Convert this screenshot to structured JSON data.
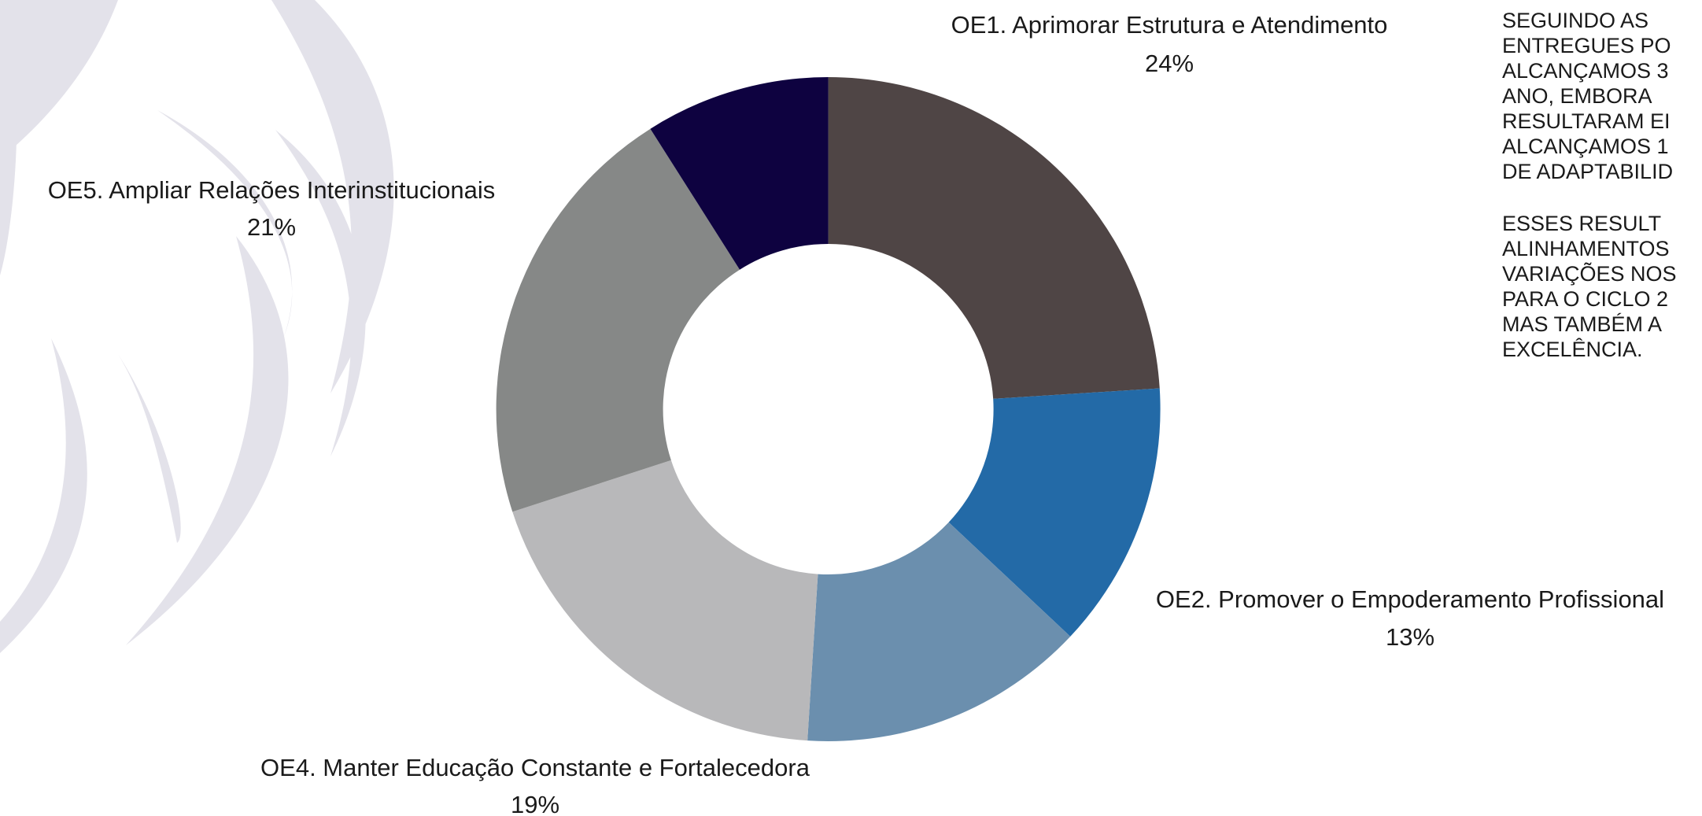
{
  "chart_data": {
    "type": "donut",
    "categories": [
      "OE1. Aprimorar Estrutura e Atendimento",
      "OE2. Promover o Empoderamento Profissional",
      null,
      "OE4. Manter Educação Constante e Fortalecedora",
      "OE5. Ampliar Relações Interinstitucionais",
      null
    ],
    "values": [
      24,
      13,
      14,
      19,
      21,
      9
    ],
    "value_labels": [
      "24%",
      "13%",
      null,
      "19%",
      "21%",
      null
    ],
    "colors": [
      "#4f4545",
      "#236aa7",
      "#6b8fae",
      "#b8b8ba",
      "#868887",
      "#0e0240"
    ]
  },
  "side_text": {
    "paragraphs": [
      [
        "SEGUINDO AS",
        "ENTREGUES PO",
        "ALCANÇAMOS 3",
        "ANO, EMBORA",
        "RESULTARAM EI",
        "ALCANÇAMOS 1",
        "DE ADAPTABILID"
      ],
      [
        "ESSES RESULT",
        "ALINHAMENTOS",
        "VARIAÇÕES NOS",
        "PARA O CICLO 2",
        "MAS TAMBÉM A",
        "EXCELÊNCIA."
      ]
    ]
  }
}
